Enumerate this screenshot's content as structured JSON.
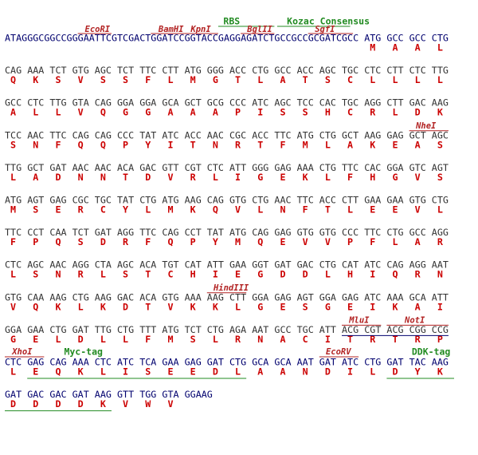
{
  "sequence": {
    "lines": [
      {
        "dna": "ATAGGGCGGCCGGGAATTCGTCGACTGGATCCGGTACCGAGGAGATCTGCCGCCGCGATCGCC ATG GCC GCC CTG",
        "protein": [
          "M",
          "A",
          "A",
          "L"
        ]
      },
      {
        "dna": "CAG AAA TCT GTG AGC TCT TTC CTT ATG GGG ACC CTG GCC ACC AGC TGC CTC CTT CTC TTG",
        "protein": [
          "Q",
          "K",
          "S",
          "V",
          "S",
          "S",
          "F",
          "L",
          "M",
          "G",
          "T",
          "L",
          "A",
          "T",
          "S",
          "C",
          "L",
          "L",
          "L",
          "L"
        ]
      },
      {
        "dna": "GCC CTC TTG GTA CAG GGA GGA GCA GCT GCG CCC ATC AGC TCC CAC TGC AGG CTT GAC AAG",
        "protein": [
          "A",
          "L",
          "L",
          "V",
          "Q",
          "G",
          "G",
          "A",
          "A",
          "A",
          "P",
          "I",
          "S",
          "S",
          "H",
          "C",
          "R",
          "L",
          "D",
          "K"
        ]
      },
      {
        "dna": "TCC AAC TTC CAG CAG CCC TAT ATC ACC AAC CGC ACC TTC ATG CTG GCT AAG GAG GCT AGC",
        "protein": [
          "S",
          "N",
          "F",
          "Q",
          "Q",
          "P",
          "Y",
          "I",
          "T",
          "N",
          "R",
          "T",
          "F",
          "M",
          "L",
          "A",
          "K",
          "E",
          "A",
          "S"
        ]
      },
      {
        "dna": "TTG GCT GAT AAC AAC ACA GAC GTT CGT CTC ATT GGG GAG AAA CTG TTC CAC GGA GTC AGT",
        "protein": [
          "L",
          "A",
          "D",
          "N",
          "N",
          "T",
          "D",
          "V",
          "R",
          "L",
          "I",
          "G",
          "E",
          "K",
          "L",
          "F",
          "H",
          "G",
          "V",
          "S"
        ]
      },
      {
        "dna": "ATG AGT GAG CGC TGC TAT CTG ATG AAG CAG GTG CTG AAC TTC ACC CTT GAA GAA GTG CTG",
        "protein": [
          "M",
          "S",
          "E",
          "R",
          "C",
          "Y",
          "L",
          "M",
          "K",
          "Q",
          "V",
          "L",
          "N",
          "F",
          "T",
          "L",
          "E",
          "E",
          "V",
          "L"
        ]
      },
      {
        "dna": "TTC CCT CAA TCT GAT AGG TTC CAG CCT TAT ATG CAG GAG GTG GTG CCC TTC CTG GCC AGG",
        "protein": [
          "F",
          "P",
          "Q",
          "S",
          "D",
          "R",
          "F",
          "Q",
          "P",
          "Y",
          "M",
          "Q",
          "E",
          "V",
          "V",
          "P",
          "F",
          "L",
          "A",
          "R"
        ]
      },
      {
        "dna": "CTC AGC AAC AGG CTA AGC ACA TGT CAT ATT GAA GGT GAT GAC CTG CAT ATC CAG AGG AAT",
        "protein": [
          "L",
          "S",
          "N",
          "R",
          "L",
          "S",
          "T",
          "C",
          "H",
          "I",
          "E",
          "G",
          "D",
          "D",
          "L",
          "H",
          "I",
          "Q",
          "R",
          "N"
        ]
      },
      {
        "dna": "GTG CAA AAG CTG AAG GAC ACA GTG AAA AAG CTT GGA GAG AGT GGA GAG ATC AAA GCA ATT",
        "protein": [
          "V",
          "Q",
          "K",
          "L",
          "K",
          "D",
          "T",
          "V",
          "K",
          "K",
          "L",
          "G",
          "E",
          "S",
          "G",
          "E",
          "I",
          "K",
          "A",
          "I"
        ]
      },
      {
        "dna": "GGA GAA CTG GAT TTG CTG TTT ATG TCT CTG AGA AAT GCC TGC ATT ACG CGT ACG CGG CCG",
        "protein": [
          "G",
          "E",
          "L",
          "D",
          "L",
          "L",
          "F",
          "M",
          "S",
          "L",
          "R",
          "N",
          "A",
          "C",
          "I",
          "T",
          "R",
          "T",
          "R",
          "P"
        ]
      },
      {
        "dna": "CTC GAG CAG AAA CTC ATC TCA GAA GAG GAT CTG GCA GCA AAT GAT ATC CTG GAT TAC AAG",
        "protein": [
          "L",
          "E",
          "Q",
          "K",
          "L",
          "I",
          "S",
          "E",
          "E",
          "D",
          "L",
          "A",
          "A",
          "N",
          "D",
          "I",
          "L",
          "D",
          "Y",
          "K"
        ]
      },
      {
        "dna": "GAT GAC GAC GAT AAG GTT TGG GTA GGAAG",
        "protein": [
          "D",
          "D",
          "D",
          "D",
          "K",
          "V",
          "W",
          "V"
        ]
      }
    ]
  },
  "features": [
    {
      "label": "EcoRI"
    },
    {
      "label": "BamHI"
    },
    {
      "label": "KpnI"
    },
    {
      "label": "RBS"
    },
    {
      "label": "BglII"
    },
    {
      "label": "Kozac Consensus"
    },
    {
      "label": "SgfI"
    },
    {
      "label": "NheI"
    },
    {
      "label": "HindIII"
    },
    {
      "label": "MluI"
    },
    {
      "label": "NotI"
    },
    {
      "label": "XhoI"
    },
    {
      "label": "Myc-tag"
    },
    {
      "label": "EcoRV"
    },
    {
      "label": "DDK-tag"
    }
  ]
}
